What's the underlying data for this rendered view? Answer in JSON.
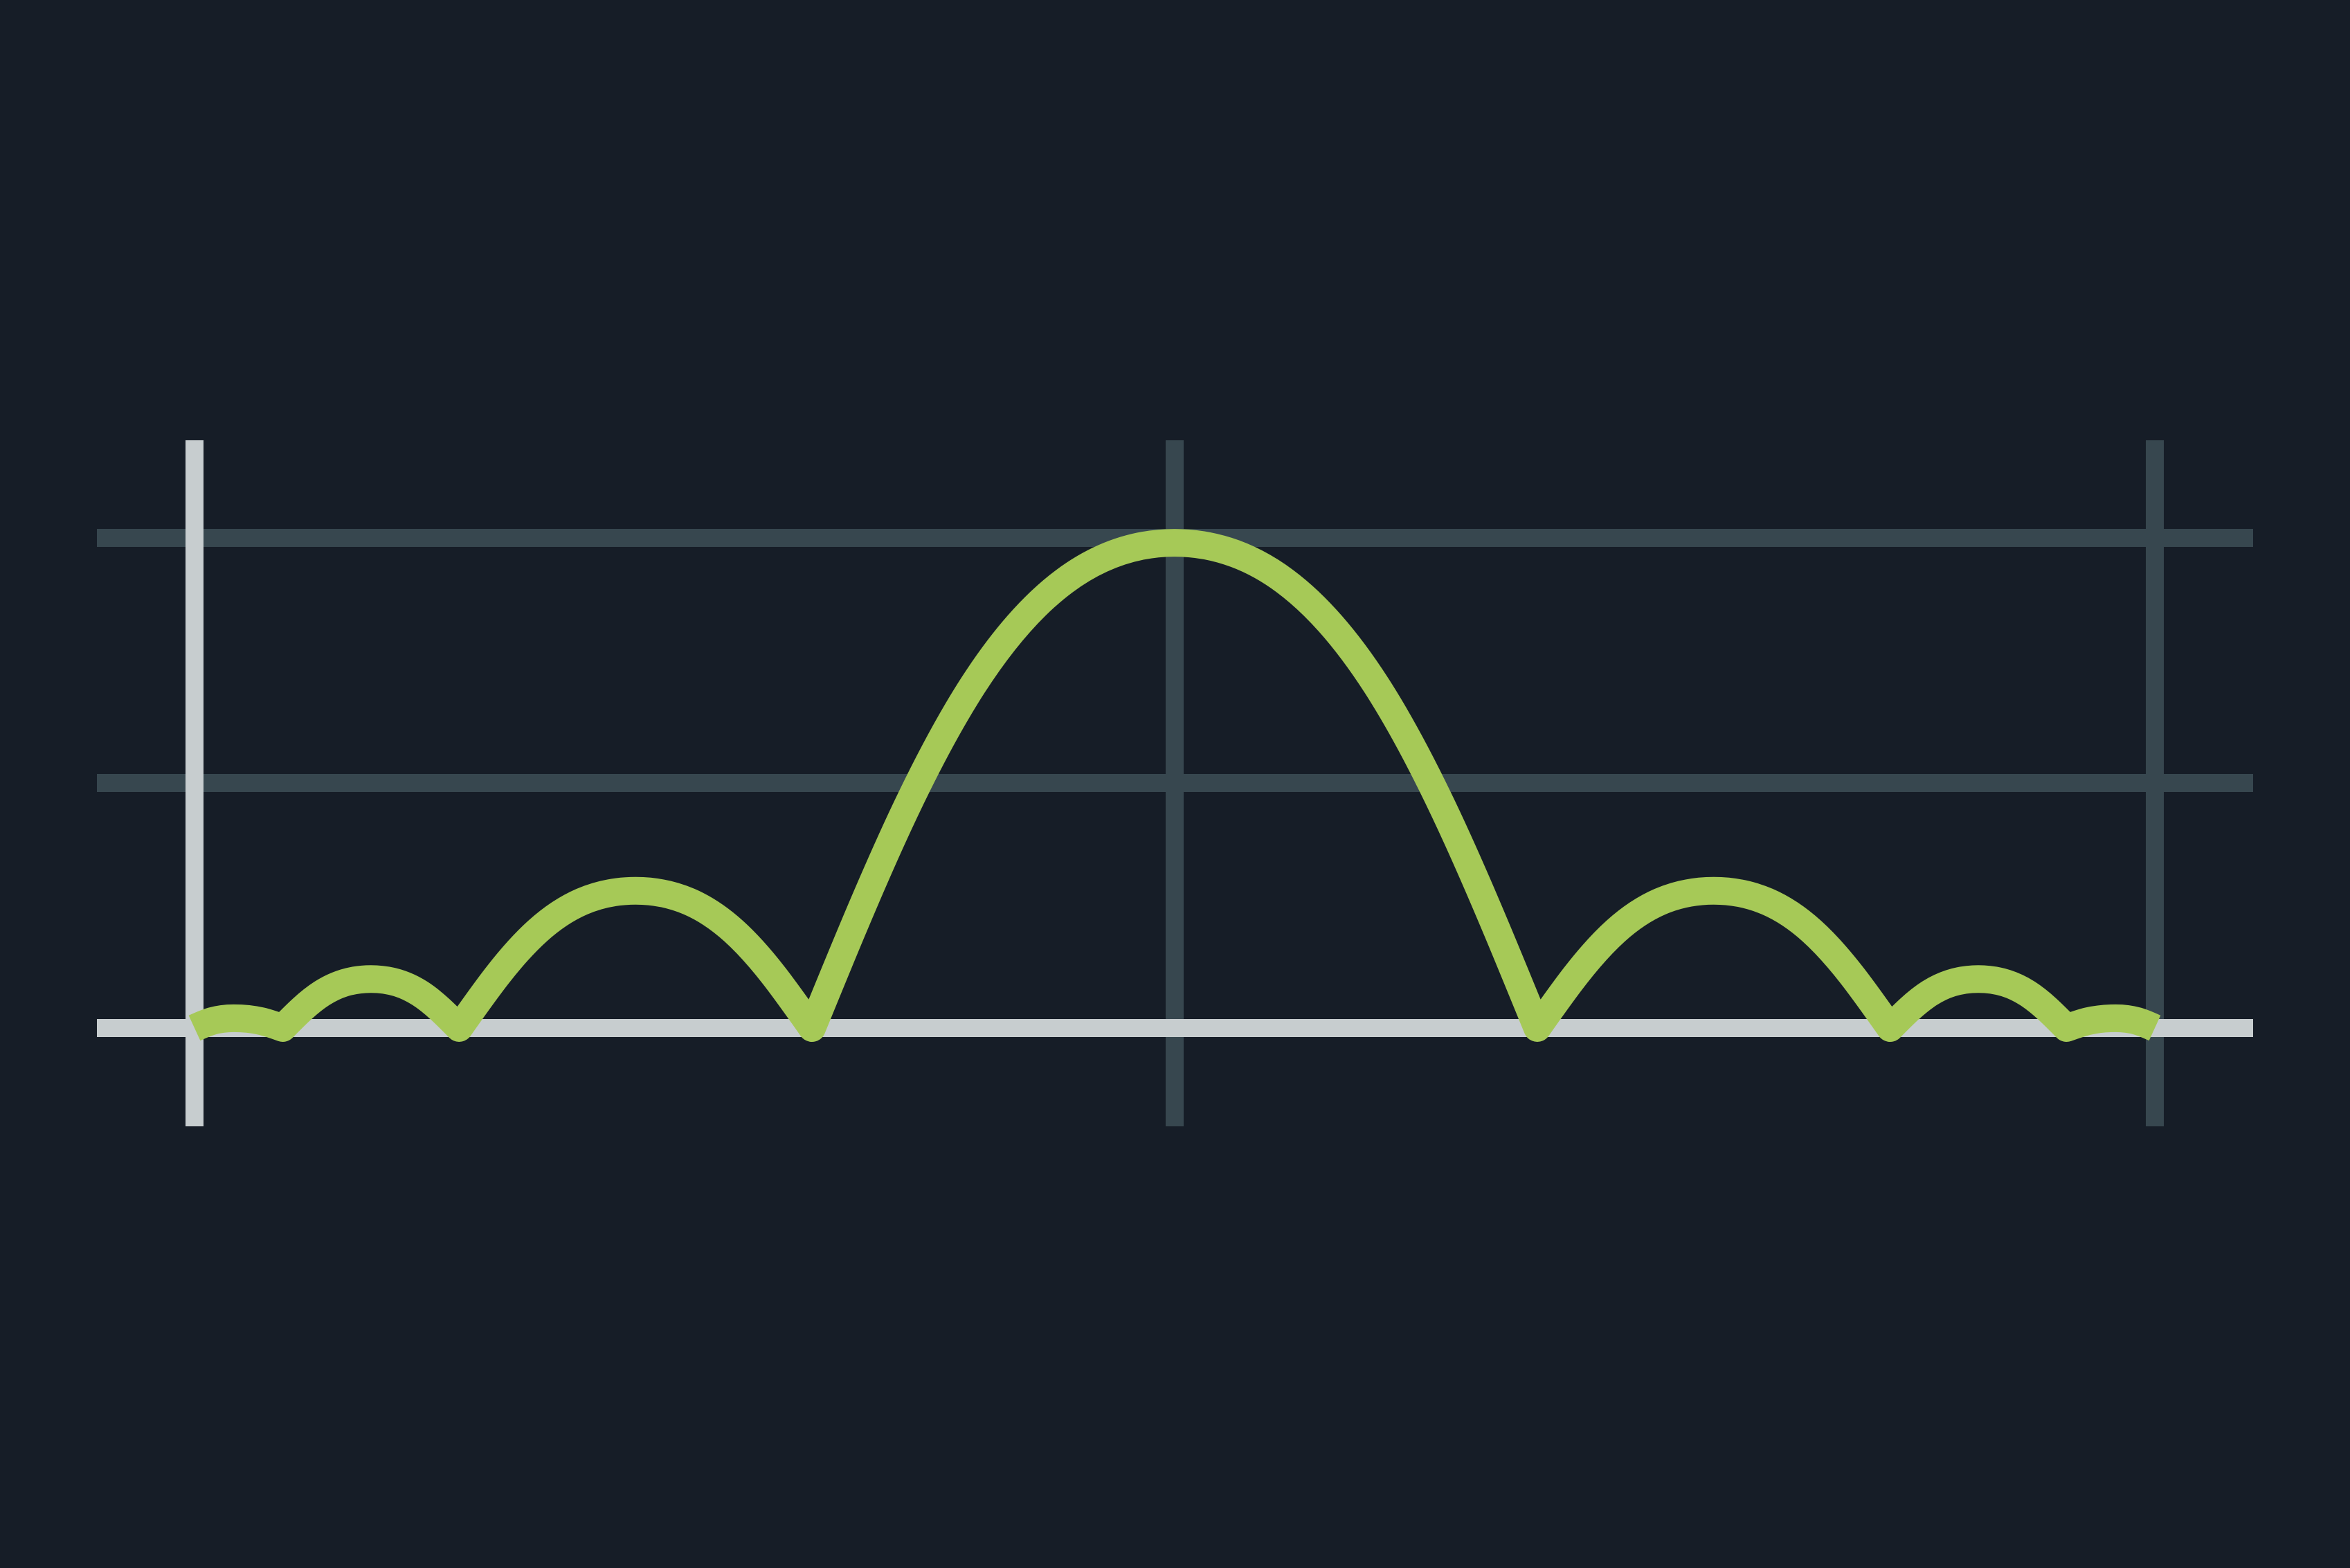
{
  "colors": {
    "background": "#161d27",
    "grid": "#37474f",
    "axis": "#c7cdcf",
    "series": "#a6c957"
  },
  "chart_data": {
    "type": "line",
    "title": "",
    "xlabel": "",
    "ylabel": "",
    "grid": true,
    "legend": "none",
    "xlim": [
      -1,
      1
    ],
    "ylim": [
      0,
      2
    ],
    "x_gridlines": [
      -1,
      0,
      1
    ],
    "y_gridlines": [
      0,
      1,
      2
    ],
    "series": [
      {
        "values": [
          [
            -1.0,
            0.0
          ],
          [
            -0.96,
            0.04
          ],
          [
            -0.91,
            0.0
          ],
          [
            -0.82,
            0.2
          ],
          [
            -0.73,
            0.0
          ],
          [
            -0.55,
            0.56
          ],
          [
            -0.37,
            0.0
          ],
          [
            -0.18,
            1.19
          ],
          [
            0.0,
            1.98
          ],
          [
            0.18,
            1.19
          ],
          [
            0.37,
            0.0
          ],
          [
            0.55,
            0.56
          ],
          [
            0.73,
            0.0
          ],
          [
            0.82,
            0.2
          ],
          [
            0.91,
            0.0
          ],
          [
            0.96,
            0.04
          ],
          [
            1.0,
            0.0
          ]
        ]
      }
    ]
  }
}
